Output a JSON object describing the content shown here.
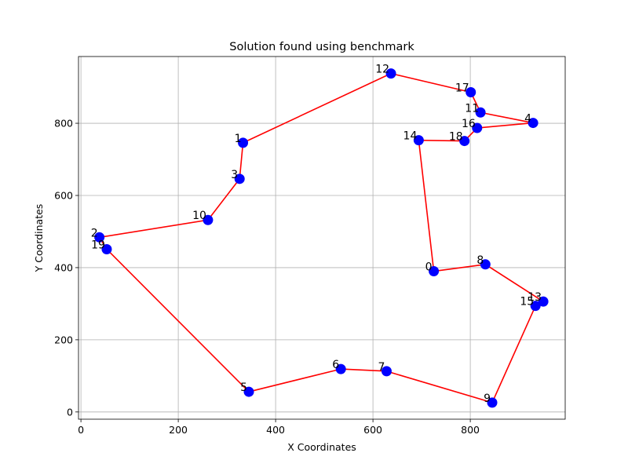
{
  "chart_data": {
    "type": "scatter",
    "title": "Solution found using benchmark",
    "xlabel": "X Coordinates",
    "ylabel": "Y Coordinates",
    "xlim": [
      -5,
      995
    ],
    "ylim": [
      -20,
      985
    ],
    "xticks": [
      0,
      200,
      400,
      600,
      800
    ],
    "yticks": [
      0,
      200,
      400,
      600,
      800
    ],
    "grid": true,
    "marker_color": "#0000ff",
    "line_color": "#ff0000",
    "points": [
      {
        "label": "0",
        "x": 725,
        "y": 390
      },
      {
        "label": "1",
        "x": 333,
        "y": 746
      },
      {
        "label": "2",
        "x": 38,
        "y": 484
      },
      {
        "label": "3",
        "x": 326,
        "y": 646
      },
      {
        "label": "4",
        "x": 929,
        "y": 801
      },
      {
        "label": "5",
        "x": 345,
        "y": 56
      },
      {
        "label": "6",
        "x": 534,
        "y": 119
      },
      {
        "label": "7",
        "x": 628,
        "y": 113
      },
      {
        "label": "8",
        "x": 831,
        "y": 409
      },
      {
        "label": "9",
        "x": 845,
        "y": 26
      },
      {
        "label": "10",
        "x": 261,
        "y": 532
      },
      {
        "label": "11",
        "x": 821,
        "y": 830
      },
      {
        "label": "12",
        "x": 637,
        "y": 938
      },
      {
        "label": "13",
        "x": 950,
        "y": 306
      },
      {
        "label": "14",
        "x": 694,
        "y": 753
      },
      {
        "label": "15",
        "x": 934,
        "y": 294
      },
      {
        "label": "16",
        "x": 814,
        "y": 787
      },
      {
        "label": "17",
        "x": 801,
        "y": 886
      },
      {
        "label": "18",
        "x": 788,
        "y": 751
      },
      {
        "label": "19",
        "x": 53,
        "y": 451
      }
    ],
    "route": [
      0,
      14,
      18,
      16,
      4,
      11,
      17,
      12,
      1,
      3,
      10,
      2,
      19,
      5,
      6,
      7,
      9,
      15,
      13,
      8,
      0
    ]
  }
}
